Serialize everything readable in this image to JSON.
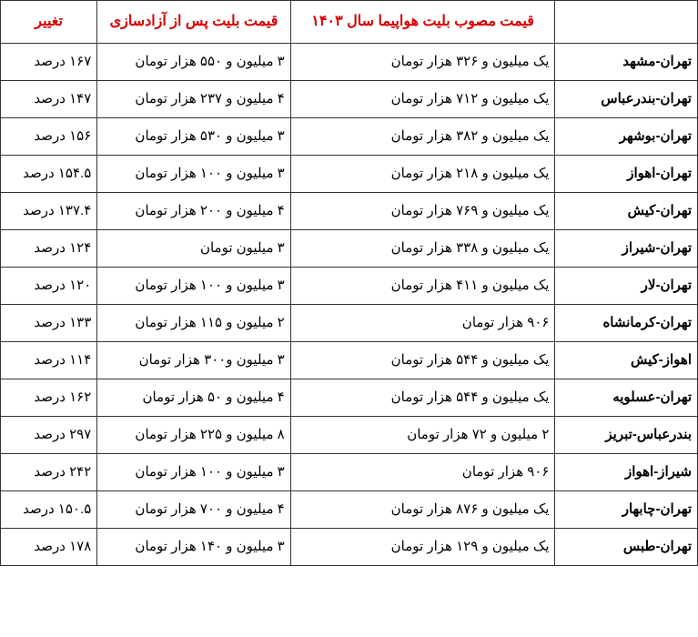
{
  "headers": {
    "route": "",
    "approved_price": "قیمت مصوب بلیت هواپیما سال ۱۴۰۳",
    "after_price": "قیمت بلیت پس از آزادسازی",
    "change": "تغییر"
  },
  "rows": [
    {
      "route": "تهران-مشهد",
      "approved": "یک میلیون و ۳۲۶ هزار تومان",
      "after": "۳ میلیون و ۵۵۰ هزار تومان",
      "change": "۱۶۷ درصد"
    },
    {
      "route": "تهران-بندرعباس",
      "approved": "یک میلیون و ۷۱۲ هزار تومان",
      "after": "۴ میلیون و ۲۳۷ هزار تومان",
      "change": "۱۴۷ درصد"
    },
    {
      "route": "تهران-بوشهر",
      "approved": "یک میلیون و ۳۸۲ هزار تومان",
      "after": "۳ میلیون و ۵۳۰ هزار تومان",
      "change": "۱۵۶ درصد"
    },
    {
      "route": "تهران-اهواز",
      "approved": "یک میلیون و ۲۱۸ هزار تومان",
      "after": "۳ میلیون و ۱۰۰ هزار تومان",
      "change": "۱۵۴.۵ درصد"
    },
    {
      "route": "تهران-کیش",
      "approved": "یک میلیون و ۷۶۹ هزار تومان",
      "after": "۴ میلیون و ۲۰۰ هزار تومان",
      "change": "۱۳۷.۴ درصد"
    },
    {
      "route": "تهران-شیراز",
      "approved": "یک میلیون و ۳۳۸ هزار تومان",
      "after": "۳ میلیون تومان",
      "change": "۱۲۴ درصد"
    },
    {
      "route": "تهران-لار",
      "approved": "یک میلیون و ۴۱۱ هزار تومان",
      "after": "۳ میلیون و ۱۰۰ هزار تومان",
      "change": "۱۲۰ درصد"
    },
    {
      "route": "تهران-کرمانشاه",
      "approved": "۹۰۶ هزار تومان",
      "after": "۲ میلیون و ۱۱۵ هزار تومان",
      "change": "۱۳۳ درصد"
    },
    {
      "route": "اهواز-کیش",
      "approved": "یک میلیون و ۵۴۴ هزار تومان",
      "after": "۳ میلیون و۳۰۰ هزار تومان",
      "change": "۱۱۴ درصد"
    },
    {
      "route": "تهران-عسلویه",
      "approved": "یک میلیون و ۵۴۴ هزار تومان",
      "after": "۴ میلیون و ۵۰ هزار تومان",
      "change": "۱۶۲ درصد"
    },
    {
      "route": "بندرعباس-تبریز",
      "approved": "۲ میلیون و ۷۲ هزار تومان",
      "after": "۸ میلیون و ۲۲۵ هزار تومان",
      "change": "۲۹۷ درصد"
    },
    {
      "route": "شیراز-اهواز",
      "approved": "۹۰۶ هزار تومان",
      "after": "۳ میلیون و ۱۰۰ هزار تومان",
      "change": "۲۴۲ درصد"
    },
    {
      "route": "تهران-چابهار",
      "approved": "یک میلیون و ۸۷۶ هزار تومان",
      "after": "۴ میلیون و ۷۰۰ هزار تومان",
      "change": "۱۵۰.۵ درصد"
    },
    {
      "route": "تهران-طبس",
      "approved": "یک میلیون و ۱۲۹ هزار تومان",
      "after": "۳ میلیون و ۱۴۰ هزار تومان",
      "change": "۱۷۸ درصد"
    }
  ],
  "styling": {
    "header_color": "#d60000",
    "border_color": "#333333",
    "route_bold": true,
    "font_family": "Tahoma",
    "cell_fontsize": 15,
    "header_fontsize": 16,
    "background_color": "#ffffff"
  }
}
